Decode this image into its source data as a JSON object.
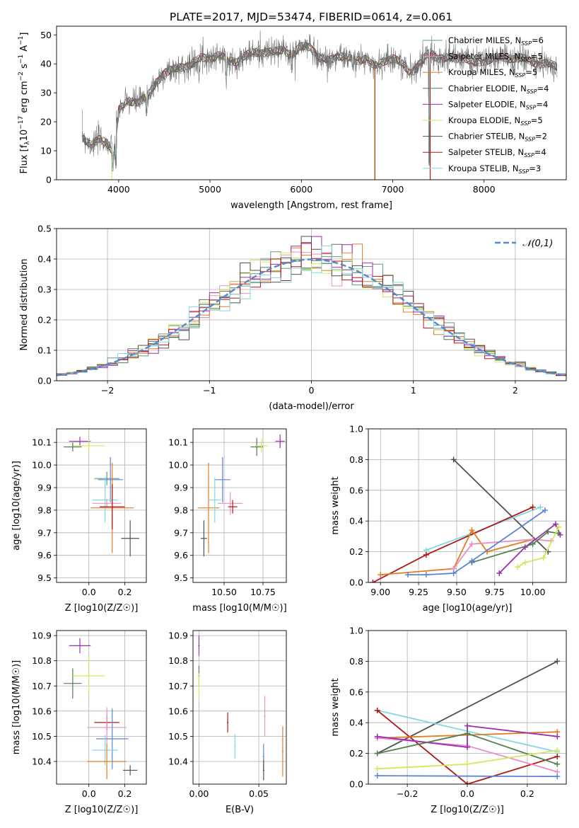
{
  "figure_title": "PLATE=2017, MJD=53474, FIBERID=0614, z=0.061",
  "colors": {
    "c0": "#5e9c80",
    "c1": "#e88fc8",
    "c2": "#e47c20",
    "c3": "#4f7f4f",
    "c4": "#9c2fb0",
    "c5": "#d4e860",
    "c6": "#505050",
    "c7": "#b01818",
    "c8": "#80d8e0",
    "grid": "#b0b0b0",
    "gauss": "#5588cc",
    "blue": "#5b86d6"
  },
  "chart_data": [
    {
      "id": "spectrum",
      "type": "line",
      "title": "PLATE=2017, MJD=53474, FIBERID=0614, z=0.061",
      "xlabel": "wavelength [Angstrom, rest frame]",
      "ylabel": "Flux [f_λ10^-17 erg cm^-2 s^-1 A^-1]",
      "xlim": [
        3320,
        8900
      ],
      "ylim": [
        0,
        53
      ],
      "xticks": [
        4000,
        5000,
        6000,
        7000,
        8000
      ],
      "yticks": [
        0,
        10,
        20,
        30,
        40,
        50
      ],
      "legend_position": "upper right",
      "legend": [
        "Chabrier MILES, N_SSP=6",
        "Salpeter MILES, N_SSP=5",
        "Kroupa MILES, N_SSP=5",
        "Chabrier ELODIE, N_SSP=4",
        "Salpeter ELODIE, N_SSP=4",
        "Kroupa ELODIE, N_SSP=5",
        "Chabrier STELIB, N_SSP=2",
        "Salpeter STELIB, N_SSP=4",
        "Kroupa STELIB, N_SSP=3"
      ],
      "continuum": [
        [
          3600,
          15
        ],
        [
          3700,
          12
        ],
        [
          3800,
          14
        ],
        [
          3900,
          12
        ],
        [
          3950,
          8
        ],
        [
          4000,
          24
        ],
        [
          4100,
          27
        ],
        [
          4200,
          27
        ],
        [
          4300,
          28
        ],
        [
          4400,
          33
        ],
        [
          4500,
          37
        ],
        [
          4600,
          38
        ],
        [
          4700,
          39
        ],
        [
          4800,
          40
        ],
        [
          4900,
          42
        ],
        [
          5000,
          42
        ],
        [
          5100,
          43
        ],
        [
          5200,
          41
        ],
        [
          5300,
          41
        ],
        [
          5400,
          43
        ],
        [
          5500,
          44
        ],
        [
          5600,
          44
        ],
        [
          5700,
          44
        ],
        [
          5800,
          45
        ],
        [
          5900,
          43
        ],
        [
          6000,
          46
        ],
        [
          6100,
          46
        ],
        [
          6200,
          42
        ],
        [
          6300,
          41
        ],
        [
          6400,
          43
        ],
        [
          6500,
          42
        ],
        [
          6600,
          41
        ],
        [
          6700,
          42
        ],
        [
          6800,
          39
        ],
        [
          6900,
          41
        ],
        [
          7000,
          42
        ],
        [
          7100,
          40
        ],
        [
          7200,
          37
        ],
        [
          7300,
          40
        ],
        [
          7400,
          44
        ],
        [
          7500,
          42
        ],
        [
          7600,
          42
        ],
        [
          7700,
          42
        ],
        [
          7800,
          42
        ],
        [
          7900,
          40
        ],
        [
          8000,
          41
        ],
        [
          8100,
          42
        ],
        [
          8200,
          42
        ],
        [
          8300,
          42
        ],
        [
          8400,
          42
        ],
        [
          8500,
          41
        ],
        [
          8600,
          40
        ],
        [
          8700,
          40
        ],
        [
          8800,
          39
        ]
      ],
      "absorption_features": [
        [
          3934,
          1
        ],
        [
          3969,
          2
        ],
        [
          4305,
          20
        ],
        [
          5177,
          33
        ],
        [
          5895,
          35
        ],
        [
          6563,
          36
        ],
        [
          7400,
          3
        ]
      ],
      "model_spikes": [
        [
          6790,
          0
        ],
        [
          6800,
          0
        ],
        [
          6810,
          40
        ],
        [
          7405,
          0
        ],
        [
          7415,
          44
        ]
      ]
    },
    {
      "id": "residuals",
      "type": "line",
      "xlabel": "(data-model)/error",
      "ylabel": "Normed distribution",
      "xlim": [
        -2.5,
        2.5
      ],
      "ylim": [
        0,
        0.5
      ],
      "xticks": [
        -2,
        -1,
        0,
        1,
        2
      ],
      "yticks": [
        0.0,
        0.1,
        0.2,
        0.3,
        0.4,
        0.5
      ],
      "legend": [
        "𝒩(0,1)"
      ],
      "legend_position": "upper right",
      "grid": true,
      "bins": 50
    },
    {
      "id": "age_vs_Z",
      "type": "scatter",
      "xlabel": "Z [log10(Z/Z☉)]",
      "ylabel": "age [log10(age/yr)]",
      "xlim": [
        -0.18,
        0.32
      ],
      "ylim": [
        9.48,
        10.16
      ],
      "xticks": [
        0.0,
        0.2
      ],
      "yticks": [
        9.5,
        9.6,
        9.7,
        9.8,
        9.9,
        10.0,
        10.1
      ],
      "grid": true,
      "points": [
        {
          "c": "c6",
          "x": 0.23,
          "y": 9.675,
          "xe": 0.05,
          "ye": 0.08
        },
        {
          "c": "c0",
          "x": 0.1,
          "y": 9.94,
          "xe": 0.07,
          "ye": 0.03
        },
        {
          "c": "blue",
          "x": 0.12,
          "y": 9.935,
          "xe": 0.07,
          "ye": 0.1
        },
        {
          "c": "c8",
          "x": 0.09,
          "y": 9.845,
          "xe": 0.07,
          "ye": 0.1
        },
        {
          "c": "c1",
          "x": 0.1,
          "y": 9.83,
          "xe": 0.08,
          "ye": 0.02
        },
        {
          "c": "c2",
          "x": 0.13,
          "y": 9.81,
          "xe": 0.12,
          "ye": 0.2
        },
        {
          "c": "c7",
          "x": 0.13,
          "y": 9.815,
          "xe": 0.07,
          "ye": 0.1
        },
        {
          "c": "c4",
          "x": -0.05,
          "y": 10.105,
          "xe": 0.06,
          "ye": 0.02
        },
        {
          "c": "c5",
          "x": 0.0,
          "y": 10.085,
          "xe": 0.09,
          "ye": 0.03
        },
        {
          "c": "c3",
          "x": -0.09,
          "y": 10.08,
          "xe": 0.05,
          "ye": 0.02
        }
      ]
    },
    {
      "id": "age_vs_mass",
      "type": "scatter",
      "xlabel": "mass [log10(M/M☉)]",
      "ylabel": "",
      "xlim": [
        10.3,
        10.9
      ],
      "ylim": [
        9.48,
        10.16
      ],
      "xticks": [
        10.5,
        10.75
      ],
      "yticks": [
        9.5,
        9.6,
        9.7,
        9.8,
        9.9,
        10.0,
        10.1
      ],
      "grid": true,
      "points": [
        {
          "c": "c6",
          "x": 10.37,
          "y": 9.675,
          "xe": 0.02,
          "ye": 0.08
        },
        {
          "c": "c2",
          "x": 10.4,
          "y": 9.81,
          "xe": 0.07,
          "ye": 0.2
        },
        {
          "c": "blue",
          "x": 10.49,
          "y": 9.935,
          "xe": 0.05,
          "ye": 0.1
        },
        {
          "c": "c8",
          "x": 10.44,
          "y": 9.845,
          "xe": 0.04,
          "ye": 0.1
        },
        {
          "c": "c1",
          "x": 10.54,
          "y": 9.83,
          "xe": 0.08,
          "ye": 0.05
        },
        {
          "c": "c7",
          "x": 10.555,
          "y": 9.815,
          "xe": 0.03,
          "ye": 0.03
        },
        {
          "c": "c3",
          "x": 10.71,
          "y": 10.08,
          "xe": 0.04,
          "ye": 0.04
        },
        {
          "c": "c5",
          "x": 10.74,
          "y": 10.085,
          "xe": 0.04,
          "ye": 0.03
        },
        {
          "c": "c4",
          "x": 10.86,
          "y": 10.105,
          "xe": 0.03,
          "ye": 0.03
        }
      ]
    },
    {
      "id": "weight_vs_age",
      "type": "line",
      "xlabel": "age [log10(age/yr)]",
      "ylabel": "mass weight",
      "xlim": [
        8.92,
        10.22
      ],
      "ylim": [
        0,
        1
      ],
      "xticks": [
        9.0,
        9.25,
        9.5,
        9.75,
        10.0
      ],
      "yticks": [
        0.0,
        0.2,
        0.4,
        0.6,
        0.8,
        1.0
      ],
      "grid": true,
      "series": [
        {
          "c": "c6",
          "x": [
            9.48,
            10.1
          ],
          "y": [
            0.8,
            0.2
          ]
        },
        {
          "c": "c8",
          "x": [
            9.3,
            9.6,
            10.05
          ],
          "y": [
            0.21,
            0.32,
            0.49
          ]
        },
        {
          "c": "c7",
          "x": [
            8.95,
            9.3,
            10.0
          ],
          "y": [
            0.0,
            0.18,
            0.49
          ]
        },
        {
          "c": "c2",
          "x": [
            9.0,
            9.48,
            9.6,
            9.7,
            10.0
          ],
          "y": [
            0.05,
            0.09,
            0.34,
            0.2,
            0.28
          ]
        },
        {
          "c": "c1",
          "x": [
            9.48,
            9.6,
            10.0,
            10.12
          ],
          "y": [
            0.09,
            0.25,
            0.28,
            0.27
          ]
        },
        {
          "c": "c4",
          "x": [
            9.78,
            9.95,
            10.15,
            10.18
          ],
          "y": [
            0.06,
            0.23,
            0.38,
            0.31
          ]
        },
        {
          "c": "c3",
          "x": [
            9.6,
            10.0,
            10.1,
            10.17
          ],
          "y": [
            0.13,
            0.25,
            0.33,
            0.32
          ]
        },
        {
          "c": "blue",
          "x": [
            9.18,
            9.3,
            9.48,
            9.6,
            10.08
          ],
          "y": [
            0.05,
            0.05,
            0.06,
            0.14,
            0.47
          ]
        },
        {
          "c": "c5",
          "x": [
            9.9,
            9.95,
            10.07,
            10.17
          ],
          "y": [
            0.1,
            0.13,
            0.16,
            0.36
          ]
        }
      ]
    },
    {
      "id": "mass_vs_Z",
      "type": "scatter",
      "xlabel": "Z [log10(Z/Z☉)]",
      "ylabel": "mass [log10(M/M☉)]",
      "xlim": [
        -0.18,
        0.32
      ],
      "ylim": [
        10.31,
        10.92
      ],
      "xticks": [
        0.0,
        0.2
      ],
      "yticks": [
        10.4,
        10.5,
        10.6,
        10.7,
        10.8,
        10.9
      ],
      "grid": true,
      "points": [
        {
          "c": "c4",
          "x": -0.05,
          "y": 10.86,
          "xe": 0.06,
          "ye": 0.03
        },
        {
          "c": "c3",
          "x": -0.09,
          "y": 10.71,
          "xe": 0.05,
          "ye": 0.06
        },
        {
          "c": "c5",
          "x": 0.0,
          "y": 10.74,
          "xe": 0.09,
          "ye": 0.08
        },
        {
          "c": "c7",
          "x": 0.1,
          "y": 10.555,
          "xe": 0.07,
          "ye": 0.03
        },
        {
          "c": "c1",
          "x": 0.1,
          "y": 10.535,
          "xe": 0.11,
          "ye": 0.08
        },
        {
          "c": "blue",
          "x": 0.13,
          "y": 10.49,
          "xe": 0.09,
          "ye": 0.12
        },
        {
          "c": "c8",
          "x": 0.09,
          "y": 10.445,
          "xe": 0.07,
          "ye": 0.06
        },
        {
          "c": "c2",
          "x": 0.1,
          "y": 10.4,
          "xe": 0.11,
          "ye": 0.07
        },
        {
          "c": "c6",
          "x": 0.23,
          "y": 10.365,
          "xe": 0.04,
          "ye": 0.02
        }
      ]
    },
    {
      "id": "mass_vs_EBV",
      "type": "scatter",
      "xlabel": "E(B-V)",
      "ylabel": "",
      "xlim": [
        -0.005,
        0.073
      ],
      "ylim": [
        10.31,
        10.92
      ],
      "xticks": [
        0.0,
        0.05
      ],
      "yticks": [
        10.4,
        10.5,
        10.6,
        10.7,
        10.8,
        10.9
      ],
      "grid": true,
      "points": [
        {
          "c": "c4",
          "x": 0.0,
          "y": 10.86,
          "ye": 0.04
        },
        {
          "c": "c3",
          "x": 0.0,
          "y": 10.74,
          "ye": 0.04
        },
        {
          "c": "c5",
          "x": 0.0,
          "y": 10.7,
          "ye": 0.05
        },
        {
          "c": "c7",
          "x": 0.024,
          "y": 10.555,
          "ye": 0.04
        },
        {
          "c": "c8",
          "x": 0.03,
          "y": 10.46,
          "ye": 0.05
        },
        {
          "c": "c1",
          "x": 0.055,
          "y": 10.58,
          "ye": 0.08
        },
        {
          "c": "blue",
          "x": 0.054,
          "y": 10.42,
          "ye": 0.05
        },
        {
          "c": "c6",
          "x": 0.054,
          "y": 10.365,
          "ye": 0.04
        },
        {
          "c": "c2",
          "x": 0.07,
          "y": 10.44,
          "ye": 0.1
        }
      ]
    },
    {
      "id": "weight_vs_Z",
      "type": "line",
      "xlabel": "Z [log10(Z/Z☉)]",
      "ylabel": "mass weight",
      "xlim": [
        -0.33,
        0.33
      ],
      "ylim": [
        0,
        1
      ],
      "xticks": [
        -0.2,
        0.0,
        0.2
      ],
      "yticks": [
        0.0,
        0.2,
        0.4,
        0.6,
        0.8,
        1.0
      ],
      "grid": true,
      "series": [
        {
          "c": "c6",
          "x": [
            -0.3,
            0.3
          ],
          "y": [
            0.2,
            0.8
          ]
        },
        {
          "c": "c8",
          "x": [
            -0.3,
            0.3
          ],
          "y": [
            0.48,
            0.21
          ]
        },
        {
          "c": "c7",
          "x": [
            -0.3,
            0.0,
            0.3
          ],
          "y": [
            0.48,
            0.0,
            0.18
          ]
        },
        {
          "c": "c2",
          "x": [
            -0.3,
            0.0,
            0.3
          ],
          "y": [
            0.3,
            0.32,
            0.34
          ]
        },
        {
          "c": "c1",
          "x": [
            -0.3,
            0.0,
            0.3
          ],
          "y": [
            0.3,
            0.25,
            0.08
          ]
        },
        {
          "c": "c4",
          "x": [
            -0.3,
            0.0,
            0.0,
            0.3
          ],
          "y": [
            0.31,
            0.24,
            0.38,
            0.31
          ]
        },
        {
          "c": "c3",
          "x": [
            -0.3,
            0.0,
            0.3
          ],
          "y": [
            0.2,
            0.33,
            0.13
          ]
        },
        {
          "c": "blue",
          "x": [
            -0.3,
            0.3
          ],
          "y": [
            0.055,
            0.05
          ]
        },
        {
          "c": "c5",
          "x": [
            -0.3,
            0.0,
            0.3
          ],
          "y": [
            0.1,
            0.13,
            0.22
          ]
        }
      ]
    }
  ]
}
